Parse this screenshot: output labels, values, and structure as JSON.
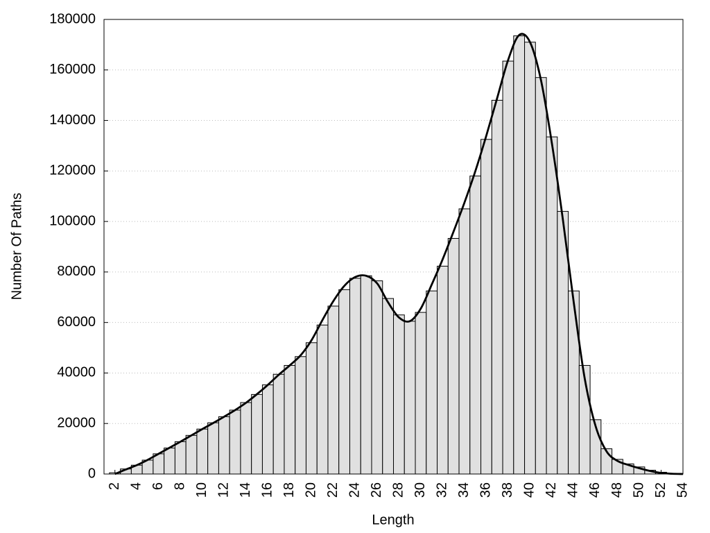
{
  "chart_data": {
    "type": "histogram",
    "x_label": "Length",
    "y_label": "Number Of Paths",
    "bins": [
      1.5,
      2.5,
      3.5,
      4.5,
      5.5,
      6.5,
      7.5,
      8.5,
      9.5,
      10.5,
      11.5,
      12.5,
      13.5,
      14.5,
      15.5,
      16.5,
      17.5,
      18.5,
      19.5,
      20.5,
      21.5,
      22.5,
      23.5,
      24.5,
      25.5,
      26.5,
      27.5,
      28.5,
      29.5,
      30.5,
      31.5,
      32.5,
      33.5,
      34.5,
      35.5,
      36.5,
      37.5,
      38.5,
      39.5,
      40.5,
      41.5,
      42.5,
      43.5,
      44.5,
      45.5,
      46.5,
      47.5,
      48.5,
      49.5,
      50.5,
      51.5,
      52.5,
      53.5
    ],
    "values": [
      500,
      2000,
      3500,
      5500,
      8000,
      10300,
      12800,
      15300,
      17800,
      20300,
      22700,
      25300,
      28300,
      31500,
      35300,
      39500,
      43000,
      46500,
      52000,
      59000,
      66500,
      73000,
      77500,
      78500,
      76500,
      69500,
      63000,
      60500,
      64000,
      72500,
      82300,
      93300,
      105000,
      118000,
      132500,
      148000,
      163500,
      173500,
      171000,
      157000,
      133500,
      104000,
      72500,
      43000,
      21500,
      10000,
      5800,
      4000,
      2800,
      1500,
      700,
      200
    ],
    "color": "#e0e0e0",
    "curve": {
      "color": "#000000",
      "x": [
        2,
        3,
        4,
        5,
        6,
        7,
        8,
        9,
        10,
        11,
        12,
        13,
        14,
        15,
        16,
        17,
        18,
        19,
        20,
        21,
        22,
        23,
        24,
        25,
        26,
        27,
        28,
        29,
        30,
        31,
        32,
        33,
        34,
        35,
        36,
        37,
        38,
        39,
        40,
        41,
        42,
        43,
        44,
        45,
        46,
        47,
        48,
        49,
        50,
        51,
        52,
        53,
        54
      ],
      "values": [
        0,
        1800,
        3500,
        5600,
        8000,
        10400,
        12800,
        15300,
        17800,
        20200,
        22700,
        25300,
        28200,
        31600,
        35300,
        39300,
        43000,
        47000,
        53000,
        61000,
        68500,
        74500,
        78000,
        78500,
        75500,
        68000,
        62000,
        60500,
        65500,
        75000,
        85000,
        96000,
        107500,
        120000,
        134000,
        149000,
        164000,
        173800,
        171000,
        156000,
        131000,
        101000,
        68000,
        38000,
        19000,
        9000,
        5200,
        3600,
        2300,
        1200,
        400,
        100,
        0
      ]
    },
    "xlim": [
      1,
      54
    ],
    "ylim": [
      0,
      180000
    ],
    "xticks": [
      2,
      4,
      6,
      8,
      10,
      12,
      14,
      16,
      18,
      20,
      22,
      24,
      26,
      28,
      30,
      32,
      34,
      36,
      38,
      40,
      42,
      44,
      46,
      48,
      50,
      52,
      54
    ],
    "yticks": [
      0,
      20000,
      40000,
      60000,
      80000,
      100000,
      120000,
      140000,
      160000,
      180000
    ],
    "grid": true
  }
}
